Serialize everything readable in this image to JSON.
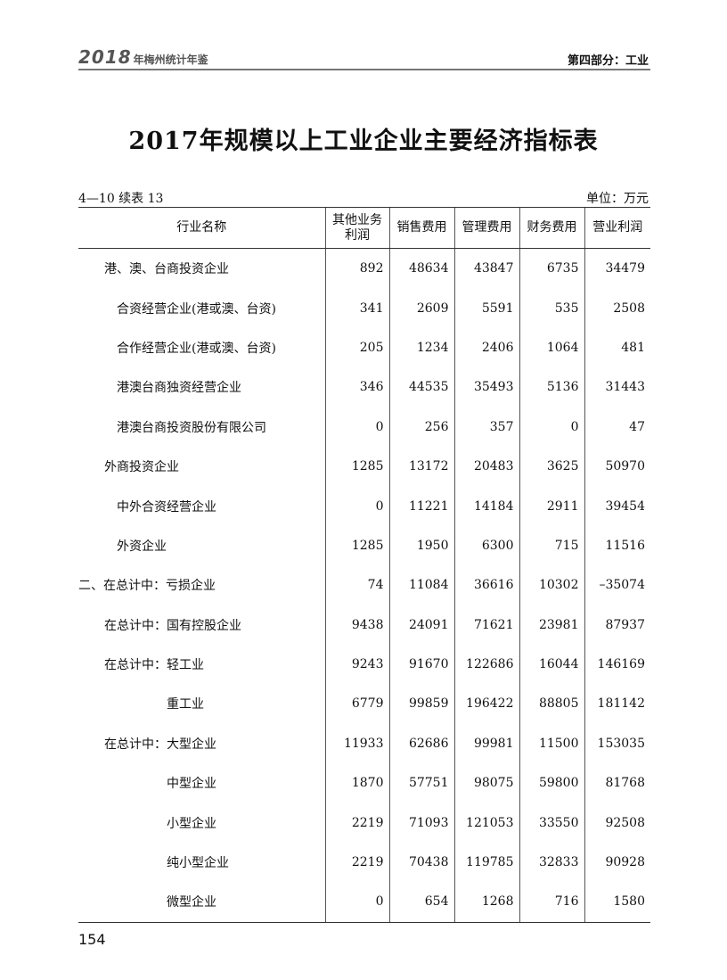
{
  "header": {
    "year": "2018",
    "book": "年梅州统计年鉴",
    "section": "第四部分：工业"
  },
  "title": "2017年规模以上工业企业主要经济指标表",
  "table_no": "4—10 续表 13",
  "unit": "单位：万元",
  "columns": [
    "行业名称",
    "其他业务利润",
    "销售费用",
    "管理费用",
    "财务费用",
    "营业利润"
  ],
  "rows": [
    {
      "name": "港、澳、台商投资企业",
      "level": 1,
      "v": [
        "892",
        "48634",
        "43847",
        "6735",
        "34479"
      ]
    },
    {
      "name": "合资经营企业(港或澳、台资)",
      "level": 2,
      "v": [
        "341",
        "2609",
        "5591",
        "535",
        "2508"
      ]
    },
    {
      "name": "合作经营企业(港或澳、台资)",
      "level": 2,
      "v": [
        "205",
        "1234",
        "2406",
        "1064",
        "481"
      ]
    },
    {
      "name": "港澳台商独资经营企业",
      "level": 2,
      "v": [
        "346",
        "44535",
        "35493",
        "5136",
        "31443"
      ]
    },
    {
      "name": "港澳台商投资股份有限公司",
      "level": 2,
      "v": [
        "0",
        "256",
        "357",
        "0",
        "47"
      ]
    },
    {
      "name": "外商投资企业",
      "level": 1,
      "v": [
        "1285",
        "13172",
        "20483",
        "3625",
        "50970"
      ]
    },
    {
      "name": "中外合资经营企业",
      "level": 2,
      "v": [
        "0",
        "11221",
        "14184",
        "2911",
        "39454"
      ]
    },
    {
      "name": "外资企业",
      "level": 2,
      "v": [
        "1285",
        "1950",
        "6300",
        "715",
        "11516"
      ]
    },
    {
      "name": "二、在总计中：亏损企业",
      "level": 0,
      "v": [
        "74",
        "11084",
        "36616",
        "10302",
        "–35074"
      ]
    },
    {
      "name": "在总计中：国有控股企业",
      "level": 1,
      "v": [
        "9438",
        "24091",
        "71621",
        "23981",
        "87937"
      ]
    },
    {
      "name": "在总计中：轻工业",
      "level": 1,
      "v": [
        "9243",
        "91670",
        "122686",
        "16044",
        "146169"
      ]
    },
    {
      "name": "重工业",
      "level": 3,
      "v": [
        "6779",
        "99859",
        "196422",
        "88805",
        "181142"
      ]
    },
    {
      "name": "在总计中：大型企业",
      "level": 1,
      "v": [
        "11933",
        "62686",
        "99981",
        "11500",
        "153035"
      ]
    },
    {
      "name": "中型企业",
      "level": 3,
      "v": [
        "1870",
        "57751",
        "98075",
        "59800",
        "81768"
      ]
    },
    {
      "name": "小型企业",
      "level": 3,
      "v": [
        "2219",
        "71093",
        "121053",
        "33550",
        "92508"
      ]
    },
    {
      "name": "纯小型企业",
      "level": 3,
      "v": [
        "2219",
        "70438",
        "119785",
        "32833",
        "90928"
      ]
    },
    {
      "name": "微型企业",
      "level": 3,
      "v": [
        "0",
        "654",
        "1268",
        "716",
        "1580"
      ]
    }
  ],
  "page_number": "154"
}
